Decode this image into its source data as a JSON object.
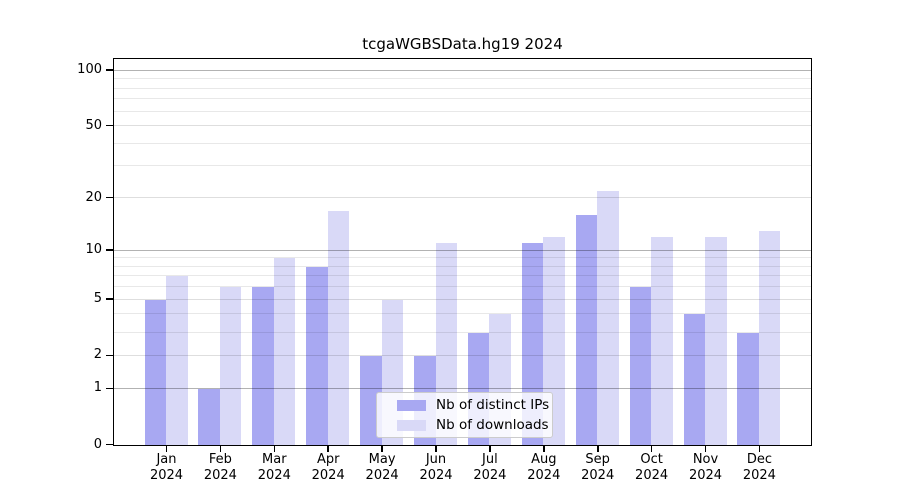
{
  "chart_data": {
    "type": "bar",
    "title": "tcgaWGBSData.hg19 2024",
    "categories": [
      "Jan",
      "Feb",
      "Mar",
      "Apr",
      "May",
      "Jun",
      "Jul",
      "Aug",
      "Sep",
      "Oct",
      "Nov",
      "Dec"
    ],
    "year_label": "2024",
    "series": [
      {
        "name": "Nb of distinct IPs",
        "color": "#a8a8f2",
        "values": [
          5,
          1,
          6,
          8,
          2,
          2,
          3,
          11,
          16,
          6,
          4,
          3
        ]
      },
      {
        "name": "Nb of downloads",
        "color": "#d9d9f7",
        "values": [
          7,
          6,
          9,
          17,
          5,
          11,
          4,
          12,
          22,
          12,
          12,
          13
        ]
      }
    ],
    "xlabel": "",
    "ylabel": "",
    "ylim": [
      0,
      100
    ],
    "y_axis": {
      "scale": "log10(1+x)",
      "tick_values": [
        0,
        1,
        2,
        5,
        10,
        20,
        50,
        100
      ],
      "tick_labels": [
        "0",
        "1",
        "2",
        "5",
        "10",
        "20",
        "50",
        "100"
      ],
      "major_grid_values": [
        1,
        10,
        100
      ],
      "soft_grid_values": [
        2,
        5,
        20,
        50
      ],
      "minor_grid_values": [
        3,
        4,
        6,
        7,
        8,
        9,
        30,
        40,
        60,
        70,
        80,
        90
      ]
    },
    "grid": "horizontal",
    "legend": {
      "position": "inside-bottom-center",
      "entries": [
        "Nb of distinct IPs",
        "Nb of downloads"
      ]
    }
  },
  "colors": {
    "bar_distinct_ips": "#a8a8f2",
    "bar_downloads": "#d9d9f7",
    "axis": "#000000",
    "background": "#ffffff",
    "legend_border": "#cccccc"
  }
}
